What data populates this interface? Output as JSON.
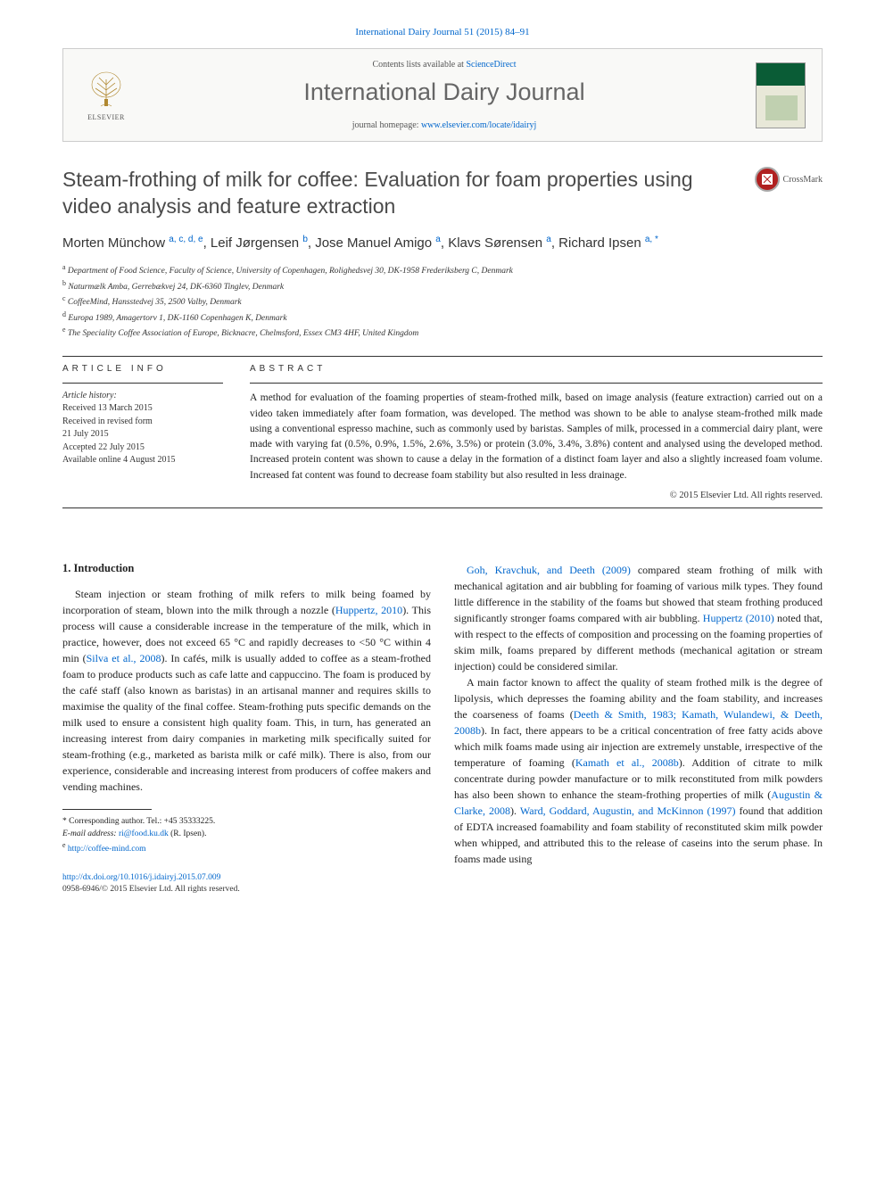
{
  "journal_ref": "International Dairy Journal 51 (2015) 84–91",
  "header": {
    "contents_prefix": "Contents lists available at ",
    "contents_link": "ScienceDirect",
    "journal_title": "International Dairy Journal",
    "homepage_prefix": "journal homepage: ",
    "homepage_link": "www.elsevier.com/locate/idairyj",
    "publisher": "ELSEVIER"
  },
  "crossmark_label": "CrossMark",
  "title": "Steam-frothing of milk for coffee: Evaluation for foam properties using video analysis and feature extraction",
  "authors_html": "Morten Münchow <sup>a, c, d, e</sup>, Leif Jørgensen <sup>b</sup>, Jose Manuel Amigo <sup>a</sup>, Klavs Sørensen <sup>a</sup>, Richard Ipsen <sup>a, *</sup>",
  "affiliations": [
    {
      "sup": "a",
      "text": "Department of Food Science, Faculty of Science, University of Copenhagen, Rolighedsvej 30, DK-1958 Frederiksberg C, Denmark"
    },
    {
      "sup": "b",
      "text": "Naturmælk Amba, Gerrebækvej 24, DK-6360 Tinglev, Denmark"
    },
    {
      "sup": "c",
      "text": "CoffeeMind, Hansstedvej 35, 2500 Valby, Denmark"
    },
    {
      "sup": "d",
      "text": "Europa 1989, Amagertorv 1, DK-1160 Copenhagen K, Denmark"
    },
    {
      "sup": "e",
      "text": "The Speciality Coffee Association of Europe, Bicknacre, Chelmsford, Essex CM3 4HF, United Kingdom"
    }
  ],
  "info_label": "ARTICLE INFO",
  "abstract_label": "ABSTRACT",
  "history": {
    "label": "Article history:",
    "items": [
      "Received 13 March 2015",
      "Received in revised form",
      "21 July 2015",
      "Accepted 22 July 2015",
      "Available online 4 August 2015"
    ]
  },
  "abstract_text": "A method for evaluation of the foaming properties of steam-frothed milk, based on image analysis (feature extraction) carried out on a video taken immediately after foam formation, was developed. The method was shown to be able to analyse steam-frothed milk made using a conventional espresso machine, such as commonly used by baristas. Samples of milk, processed in a commercial dairy plant, were made with varying fat (0.5%, 0.9%, 1.5%, 2.6%, 3.5%) or protein (3.0%, 3.4%, 3.8%) content and analysed using the developed method. Increased protein content was shown to cause a delay in the formation of a distinct foam layer and also a slightly increased foam volume. Increased fat content was found to decrease foam stability but also resulted in less drainage.",
  "copyright": "© 2015 Elsevier Ltd. All rights reserved.",
  "section_1_heading": "1.  Introduction",
  "col1_p1": "Steam injection or steam frothing of milk refers to milk being foamed by incorporation of steam, blown into the milk through a nozzle (<span class=\"cite\">Huppertz, 2010</span>). This process will cause a considerable increase in the temperature of the milk, which in practice, however, does not exceed 65 °C and rapidly decreases to <50 °C within 4 min (<span class=\"cite\">Silva et al., 2008</span>). In cafés, milk is usually added to coffee as a steam-frothed foam to produce products such as cafe latte and cappuccino. The foam is produced by the café staff (also known as baristas) in an artisanal manner and requires skills to maximise the quality of the final coffee. Steam-frothing puts specific demands on the milk used to ensure a consistent high quality foam. This, in turn, has generated an increasing interest from dairy companies in marketing milk specifically suited for steam-frothing (e.g., marketed as barista milk or café milk). There is also, from our experience, considerable and increasing interest from producers of coffee makers and vending machines.",
  "col2_p1": "<span class=\"cite\">Goh, Kravchuk, and Deeth (2009)</span> compared steam frothing of milk with mechanical agitation and air bubbling for foaming of various milk types. They found little difference in the stability of the foams but showed that steam frothing produced significantly stronger foams compared with air bubbling. <span class=\"cite\">Huppertz (2010)</span> noted that, with respect to the effects of composition and processing on the foaming properties of skim milk, foams prepared by different methods (mechanical agitation or stream injection) could be considered similar.",
  "col2_p2": "A main factor known to affect the quality of steam frothed milk is the degree of lipolysis, which depresses the foaming ability and the foam stability, and increases the coarseness of foams (<span class=\"cite\">Deeth &amp; Smith, 1983; Kamath, Wulandewi, &amp; Deeth, 2008b</span>). In fact, there appears to be a critical concentration of free fatty acids above which milk foams made using air injection are extremely unstable, irrespective of the temperature of foaming (<span class=\"cite\">Kamath et al., 2008b</span>). Addition of citrate to milk concentrate during powder manufacture or to milk reconstituted from milk powders has also been shown to enhance the steam-frothing properties of milk (<span class=\"cite\">Augustin &amp; Clarke, 2008</span>). <span class=\"cite\">Ward, Goddard, Augustin, and McKinnon (1997)</span> found that addition of EDTA increased foamability and foam stability of reconstituted skim milk powder when whipped, and attributed this to the release of caseins into the serum phase. In foams made using",
  "footnote": {
    "corr": "* Corresponding author. Tel.: +45 35333225.",
    "email_label": "E-mail address:",
    "email": "ri@food.ku.dk",
    "email_name": "(R. Ipsen).",
    "url": "http://coffee-mind.com"
  },
  "footer": {
    "doi": "http://dx.doi.org/10.1016/j.idairyj.2015.07.009",
    "issn": "0958-6946/© 2015 Elsevier Ltd. All rights reserved."
  },
  "colors": {
    "link": "#0066cc",
    "title_gray": "#4a4a4a",
    "journal_green": "#0a5c36",
    "crossmark_red": "#b02020"
  }
}
